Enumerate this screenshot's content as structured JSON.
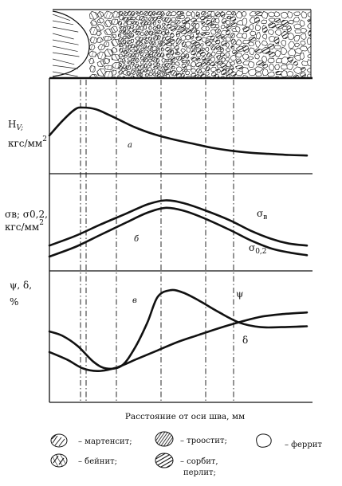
{
  "figure": {
    "xlabel": "Расстояние от оси шва, мм",
    "panel_a": {
      "ylabel_line1": "H",
      "ylabel_sub": "V;",
      "ylabel_line2": "кгс/мм",
      "ylabel_sup": "2",
      "letter": "а"
    },
    "panel_b": {
      "ylabel_line1": "σв; σ0,2,",
      "ylabel_line2": "кгс/мм",
      "ylabel_sup": "2",
      "letter": "б",
      "label_s1": "σ",
      "label_s1_sub": "в",
      "label_s2": "σ",
      "label_s2_sub": "0,2"
    },
    "panel_c": {
      "ylabel_line1": "ψ, δ,",
      "ylabel_line2": "%",
      "letter": "в",
      "label_s1": "ψ",
      "label_s2": "δ"
    }
  },
  "legend": [
    {
      "icon": "martensite-icon",
      "label": "– мартенсит;"
    },
    {
      "icon": "troostite-icon",
      "label": "– троостит;"
    },
    {
      "icon": "ferrite-icon",
      "label": "– феррит"
    },
    {
      "icon": "bainite-icon",
      "label": "– бейнит;"
    },
    {
      "icon": "sorbite-icon",
      "label": "– сорбит,"
    },
    {
      "icon": "pearlite-icon",
      "label": "перлит;"
    }
  ],
  "chart_data": [
    {
      "type": "line",
      "panel": "а",
      "title": "",
      "xlabel": "Расстояние от оси шва, мм",
      "ylabel": "HV, кгс/мм2",
      "x_range": [
        0,
        1
      ],
      "ylim": [
        0,
        1
      ],
      "grid": false,
      "series": [
        {
          "x": [
            0.0,
            0.05,
            0.1,
            0.13,
            0.18,
            0.23,
            0.28,
            0.33,
            0.4,
            0.48,
            0.56,
            0.63,
            0.7,
            0.78,
            0.85,
            0.93,
            1.0
          ],
          "y": [
            0.4,
            0.66,
            0.87,
            0.9,
            0.87,
            0.77,
            0.66,
            0.55,
            0.43,
            0.33,
            0.25,
            0.18,
            0.13,
            0.09,
            0.07,
            0.05,
            0.04
          ]
        }
      ]
    },
    {
      "type": "line",
      "panel": "б",
      "title": "",
      "xlabel": "Расстояние от оси шва, мм",
      "ylabel": "σв; σ0,2, кгс/мм2",
      "x_range": [
        0,
        1
      ],
      "ylim": [
        0,
        1
      ],
      "grid": false,
      "series": [
        {
          "name": "σв",
          "x": [
            0.0,
            0.1,
            0.2,
            0.3,
            0.38,
            0.45,
            0.52,
            0.6,
            0.7,
            0.78,
            0.86,
            0.93,
            1.0
          ],
          "y": [
            0.16,
            0.3,
            0.47,
            0.63,
            0.76,
            0.82,
            0.78,
            0.68,
            0.53,
            0.38,
            0.26,
            0.19,
            0.16
          ]
        },
        {
          "name": "σ0,2",
          "x": [
            0.0,
            0.1,
            0.2,
            0.3,
            0.38,
            0.45,
            0.52,
            0.6,
            0.7,
            0.78,
            0.86,
            0.93,
            1.0
          ],
          "y": [
            0.0,
            0.14,
            0.32,
            0.5,
            0.64,
            0.71,
            0.67,
            0.56,
            0.39,
            0.24,
            0.12,
            0.06,
            0.02
          ]
        }
      ]
    },
    {
      "type": "line",
      "panel": "в",
      "title": "",
      "xlabel": "Расстояние от оси шва, мм",
      "ylabel": "ψ, δ, %",
      "x_range": [
        0,
        1
      ],
      "ylim": [
        0,
        1
      ],
      "grid": false,
      "series": [
        {
          "name": "ψ",
          "x": [
            0.0,
            0.05,
            0.11,
            0.17,
            0.22,
            0.28,
            0.33,
            0.38,
            0.42,
            0.47,
            0.52,
            0.58,
            0.66,
            0.74,
            0.82,
            0.9,
            1.0
          ],
          "y": [
            0.5,
            0.45,
            0.33,
            0.15,
            0.07,
            0.1,
            0.3,
            0.6,
            0.9,
            0.98,
            0.95,
            0.86,
            0.72,
            0.6,
            0.55,
            0.55,
            0.56
          ]
        },
        {
          "name": "δ",
          "x": [
            0.0,
            0.07,
            0.13,
            0.19,
            0.26,
            0.34,
            0.42,
            0.5,
            0.58,
            0.66,
            0.74,
            0.82,
            0.9,
            1.0
          ],
          "y": [
            0.26,
            0.17,
            0.07,
            0.04,
            0.08,
            0.18,
            0.28,
            0.38,
            0.46,
            0.54,
            0.61,
            0.67,
            0.7,
            0.72
          ]
        }
      ]
    }
  ]
}
